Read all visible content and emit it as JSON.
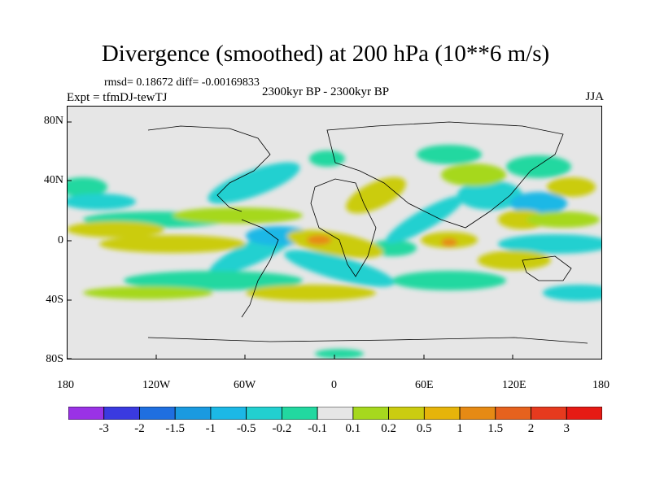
{
  "title": "Divergence (smoothed) at 200 hPa (10**6 m/s)",
  "stats": "rmsd= 0.18672  diff= -0.00169833",
  "experiment": "Expt = tfmDJ-tewTJ",
  "period": "2300kyr BP - 2300kyr BP",
  "season": "JJA",
  "lat_labels": [
    "80N",
    "40N",
    "0",
    "40S",
    "80S"
  ],
  "lon_labels": [
    "180",
    "120W",
    "60W",
    "0",
    "60E",
    "120E",
    "180"
  ],
  "colorbar": {
    "labels": [
      "-3",
      "-2",
      "-1.5",
      "-1",
      "-0.5",
      "-0.2",
      "-0.1",
      "0.1",
      "0.2",
      "0.5",
      "1",
      "1.5",
      "2",
      "3"
    ],
    "colors": [
      "#9a32e6",
      "#3a3ae0",
      "#1f6fe0",
      "#1a9ae0",
      "#1cb8e6",
      "#22d0d0",
      "#22d8a0",
      "#e6e6e6",
      "#a6d81e",
      "#cbcc10",
      "#e6b40a",
      "#e68a14",
      "#e6621e",
      "#e63a1e",
      "#e61a14"
    ]
  }
}
